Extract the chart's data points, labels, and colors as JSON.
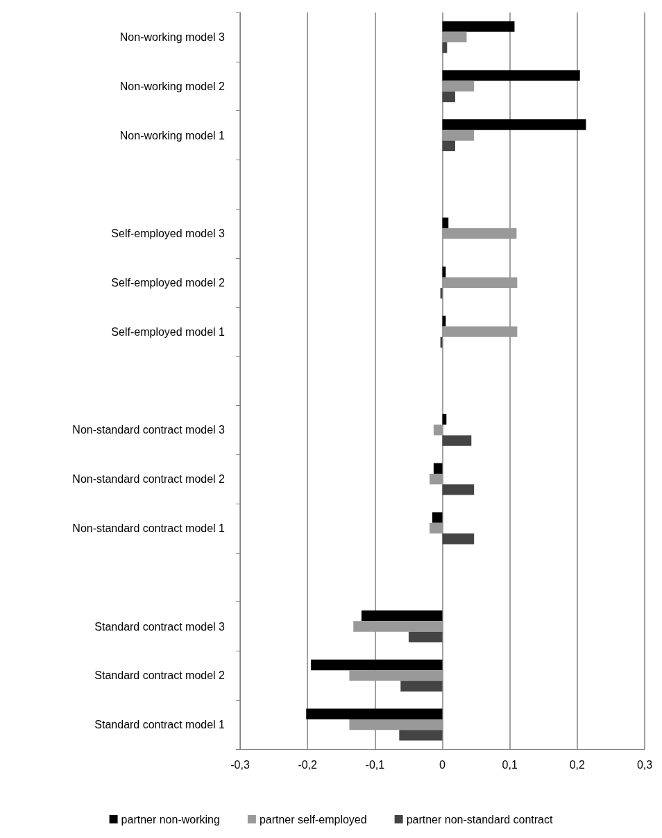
{
  "chart_data": {
    "type": "bar",
    "orientation": "horizontal",
    "categories": [
      "Non-working model 3",
      "Non-working model 2",
      "Non-working model 1",
      null,
      "Self-employed model 3",
      "Self-employed model 2",
      "Self-employed model 1",
      null,
      "Non-standard contract model 3",
      "Non-standard contract model 2",
      "Non-standard contract model 1",
      null,
      "Standard contract model 3",
      "Standard contract model 2",
      "Standard contract model 1"
    ],
    "series": [
      {
        "name": "partner non-working",
        "color": "#000000",
        "values": [
          0.107,
          0.204,
          0.213,
          null,
          0.009,
          0.005,
          0.005,
          null,
          0.006,
          -0.013,
          -0.015,
          null,
          -0.12,
          -0.195,
          -0.202
        ]
      },
      {
        "name": "partner self-employed",
        "color": "#999999",
        "values": [
          0.036,
          0.047,
          0.047,
          null,
          0.11,
          0.111,
          0.111,
          null,
          -0.013,
          -0.019,
          -0.019,
          null,
          -0.132,
          -0.138,
          -0.138
        ]
      },
      {
        "name": "partner non-standard contract",
        "color": "#444444",
        "values": [
          0.007,
          0.019,
          0.019,
          null,
          0,
          -0.003,
          -0.003,
          null,
          0.043,
          0.047,
          0.047,
          null,
          -0.05,
          -0.062,
          -0.064
        ]
      }
    ],
    "xlim": [
      -0.3,
      0.3
    ],
    "xticks": [
      {
        "value": -0.3,
        "label": "-0,3"
      },
      {
        "value": -0.2,
        "label": "-0,2"
      },
      {
        "value": -0.1,
        "label": "-0,1"
      },
      0,
      {
        "value": 0.1,
        "label": "0,1"
      },
      {
        "value": 0.2,
        "label": "0,2"
      },
      {
        "value": 0.3,
        "label": "0,3"
      }
    ],
    "grid": "x",
    "legend": "bottom"
  }
}
